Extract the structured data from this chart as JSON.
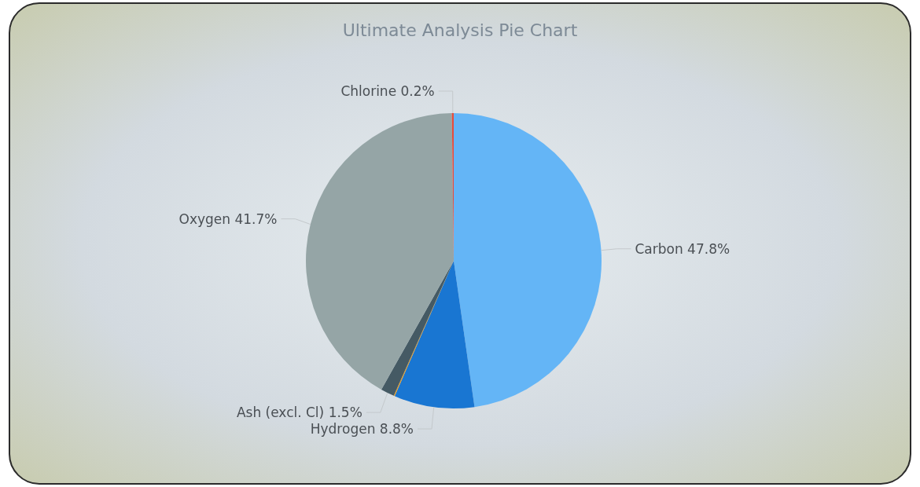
{
  "chart_data": {
    "type": "pie",
    "title": "Ultimate Analysis Pie Chart",
    "categories": [
      "Carbon",
      "Hydrogen",
      null,
      "Ash (excl. Cl)",
      "Oxygen",
      "Chlorine"
    ],
    "values": [
      47.8,
      8.8,
      0.1,
      1.5,
      41.7,
      0.2
    ],
    "value_labels": [
      "47.8%",
      "8.8%",
      null,
      "1.5%",
      "41.7%",
      "0.2%"
    ],
    "colors": [
      "#64b5f6",
      "#1976d2",
      "#f39c12",
      "#455a64",
      "#95a5a6",
      "#e74c3c"
    ]
  }
}
